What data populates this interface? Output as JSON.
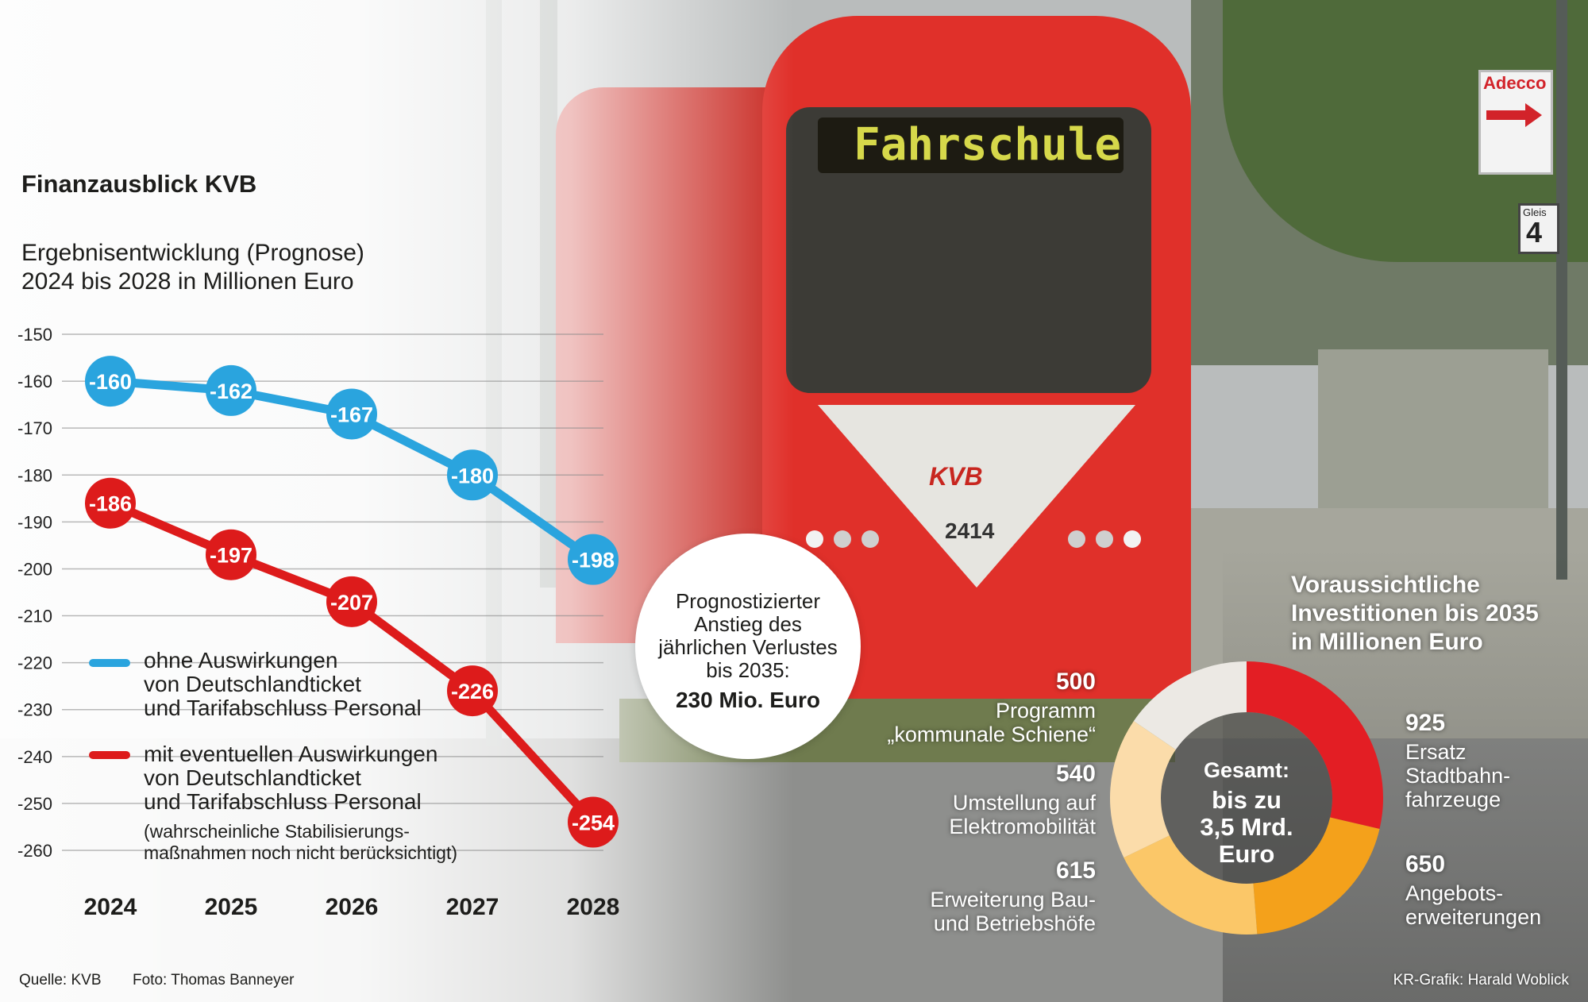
{
  "header": {
    "title": "Finanzausblick KVB",
    "subtitle_line1": "Ergebnisentwicklung (Prognose)",
    "subtitle_line2": "2024 bis 2028 in Millionen Euro"
  },
  "legend": {
    "blue_line1": "ohne Auswirkungen",
    "blue_line2": "von Deutschlandticket",
    "blue_line3": "und Tarifabschluss Personal",
    "red_line1": "mit eventuellen Auswirkungen",
    "red_line2": "von Deutschlandticket",
    "red_line3": "und Tarifabschluss Personal",
    "note_line1": "(wahrscheinliche Stabilisierungs-",
    "note_line2": "maßnahmen noch nicht berücksichtigt)"
  },
  "callout": {
    "line1": "Prognostizierter",
    "line2": "Anstieg des",
    "line3": "jährlichen Verlustes",
    "line4": "bis 2035:",
    "value": "230 Mio. Euro"
  },
  "tram": {
    "destination": "Fahrschule",
    "logo": "KVB",
    "number": "2414",
    "ad_sign": "Adecco",
    "platform_label": "Gleis",
    "platform_number": "4"
  },
  "donut": {
    "title_line1": "Voraussichtliche",
    "title_line2": "Investitionen bis 2035",
    "title_line3": "in Millionen Euro",
    "center_line1": "Gesamt:",
    "center_line2": "bis zu",
    "center_line3": "3,5 Mrd.",
    "center_line4": "Euro",
    "segments": [
      {
        "value_label": "925",
        "label_line1": "Ersatz",
        "label_line2": "Stadtbahn-",
        "label_line3": "fahrzeuge"
      },
      {
        "value_label": "650",
        "label_line1": "Angebots-",
        "label_line2": "erweiterungen"
      },
      {
        "value_label": "615",
        "label_line1": "Erweiterung Bau-",
        "label_line2": "und Betriebshöfe"
      },
      {
        "value_label": "540",
        "label_line1": "Umstellung auf",
        "label_line2": "Elektromobilität"
      },
      {
        "value_label": "500",
        "label_line1": "Programm",
        "label_line2": "„kommunale Schiene“"
      }
    ]
  },
  "footer": {
    "source": "Quelle: KVB",
    "photo": "Foto: Thomas Banneyer",
    "credit": "KR-Grafik: Harald Woblick"
  },
  "colors": {
    "blue": "#2aa4de",
    "red": "#dd1b1b",
    "donut_red": "#e31e24",
    "donut_orange": "#f4a11b",
    "donut_lightorange": "#fbc768",
    "donut_peach": "#fbdcaa",
    "donut_grey": "#ece9e4"
  },
  "chart_data": [
    {
      "type": "line",
      "categories": [
        "2024",
        "2025",
        "2026",
        "2027",
        "2028"
      ],
      "ylim": [
        -260,
        -150
      ],
      "yticks": [
        "-150",
        "-160",
        "-170",
        "-180",
        "-190",
        "-200",
        "-210",
        "-220",
        "-230",
        "-240",
        "-250",
        "-260"
      ],
      "series": [
        {
          "name": "ohne Auswirkungen von Deutschlandticket und Tarifabschluss Personal",
          "values": [
            -160,
            -162,
            -167,
            -180,
            -198
          ],
          "labels": [
            "-160",
            "-162",
            "-167",
            "-180",
            "-198"
          ]
        },
        {
          "name": "mit eventuellen Auswirkungen von Deutschlandticket und Tarifabschluss Personal",
          "values": [
            -186,
            -197,
            -207,
            -226,
            -254
          ],
          "labels": [
            "-186",
            "-197",
            "-207",
            "-226",
            "-254"
          ]
        }
      ]
    },
    {
      "type": "pie",
      "categories": [
        "Ersatz Stadtbahnfahrzeuge",
        "Angebotserweiterungen",
        "Erweiterung Bau- und Betriebshöfe",
        "Umstellung auf Elektromobilität",
        "Programm „kommunale Schiene“"
      ],
      "values": [
        925,
        650,
        615,
        540,
        500
      ]
    }
  ]
}
